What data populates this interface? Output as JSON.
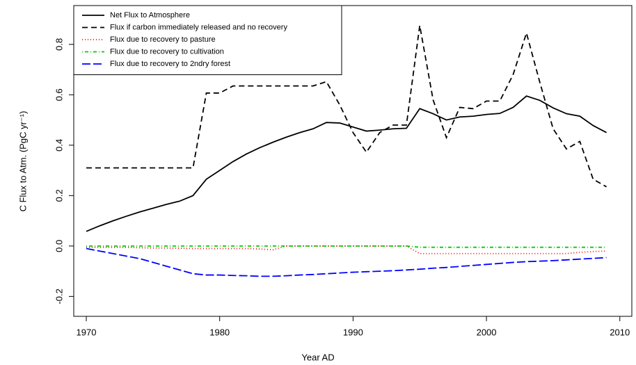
{
  "chart_data": {
    "type": "line",
    "xlabel": "Year AD",
    "ylabel": "C Flux to Atm. (PgC yr⁻¹)",
    "x": [
      1970,
      1971,
      1972,
      1973,
      1974,
      1975,
      1976,
      1977,
      1978,
      1979,
      1980,
      1981,
      1982,
      1983,
      1984,
      1985,
      1986,
      1987,
      1988,
      1989,
      1990,
      1991,
      1992,
      1993,
      1994,
      1995,
      1996,
      1997,
      1998,
      1999,
      2000,
      2001,
      2002,
      2003,
      2004,
      2005,
      2006,
      2007,
      2008,
      2009
    ],
    "xlim": [
      1969.06,
      2010.9
    ],
    "xticks": [
      1970,
      1980,
      1990,
      2000,
      2010
    ],
    "ylim": [
      -0.279,
      0.954
    ],
    "yticks": [
      -0.2,
      {
        "value": 0,
        "label": "0.0"
      },
      0.2,
      0.4,
      0.6,
      0.8
    ],
    "legend": "top-left",
    "series": [
      {
        "name": "Net Flux to Atmosphere",
        "color": "#000000",
        "linestyle": "solid",
        "values": [
          0.058,
          0.08,
          0.1,
          0.118,
          0.135,
          0.15,
          0.165,
          0.178,
          0.2,
          0.265,
          0.3,
          0.335,
          0.365,
          0.39,
          0.412,
          0.432,
          0.45,
          0.465,
          0.49,
          0.488,
          0.472,
          0.456,
          0.46,
          0.465,
          0.467,
          0.545,
          0.525,
          0.5,
          0.512,
          0.515,
          0.522,
          0.526,
          0.55,
          0.595,
          0.578,
          0.548,
          0.525,
          0.515,
          0.478,
          0.45
        ]
      },
      {
        "name": "Flux if carbon immediately released and no recovery",
        "color": "#000000",
        "linestyle": "dashed",
        "values": [
          0.31,
          0.31,
          0.31,
          0.31,
          0.31,
          0.31,
          0.31,
          0.31,
          0.31,
          0.607,
          0.607,
          0.635,
          0.635,
          0.635,
          0.635,
          0.635,
          0.635,
          0.635,
          0.652,
          0.56,
          0.45,
          0.372,
          0.45,
          0.48,
          0.48,
          0.875,
          0.58,
          0.43,
          0.55,
          0.545,
          0.575,
          0.575,
          0.68,
          0.845,
          0.65,
          0.465,
          0.385,
          0.415,
          0.265,
          0.235
        ]
      },
      {
        "name": "Flux due to recovery to pasture",
        "color": "#ff0000",
        "linestyle": "dotted",
        "values": [
          -0.005,
          -0.005,
          -0.005,
          -0.005,
          -0.007,
          -0.008,
          -0.008,
          -0.009,
          -0.01,
          -0.01,
          -0.01,
          -0.01,
          -0.01,
          -0.012,
          -0.015,
          0,
          0,
          0,
          0,
          0,
          0,
          0,
          0,
          0,
          0,
          -0.03,
          -0.03,
          -0.03,
          -0.03,
          -0.03,
          -0.03,
          -0.03,
          -0.03,
          -0.03,
          -0.03,
          -0.03,
          -0.03,
          -0.025,
          -0.022,
          -0.02
        ]
      },
      {
        "name": "Flux due to recovery to cultivation",
        "color": "#00cd00",
        "linestyle": "dotdash",
        "values": [
          0,
          0,
          0,
          0,
          0,
          0,
          0,
          0,
          0,
          0,
          0,
          0,
          0,
          0,
          0,
          0,
          0,
          0,
          0,
          0,
          0,
          0,
          0,
          0,
          0,
          -0.005,
          -0.005,
          -0.005,
          -0.005,
          -0.005,
          -0.005,
          -0.005,
          -0.005,
          -0.005,
          -0.005,
          -0.005,
          -0.005,
          -0.005,
          -0.005,
          -0.005
        ]
      },
      {
        "name": "Flux due to recovery to 2ndry forest",
        "color": "#0000ff",
        "linestyle": "longdash",
        "values": [
          -0.01,
          -0.02,
          -0.03,
          -0.04,
          -0.05,
          -0.065,
          -0.08,
          -0.095,
          -0.11,
          -0.115,
          -0.115,
          -0.117,
          -0.118,
          -0.12,
          -0.12,
          -0.118,
          -0.115,
          -0.113,
          -0.11,
          -0.107,
          -0.104,
          -0.102,
          -0.1,
          -0.098,
          -0.095,
          -0.092,
          -0.088,
          -0.085,
          -0.081,
          -0.077,
          -0.073,
          -0.069,
          -0.065,
          -0.062,
          -0.06,
          -0.058,
          -0.055,
          -0.052,
          -0.049,
          -0.046
        ]
      }
    ]
  }
}
